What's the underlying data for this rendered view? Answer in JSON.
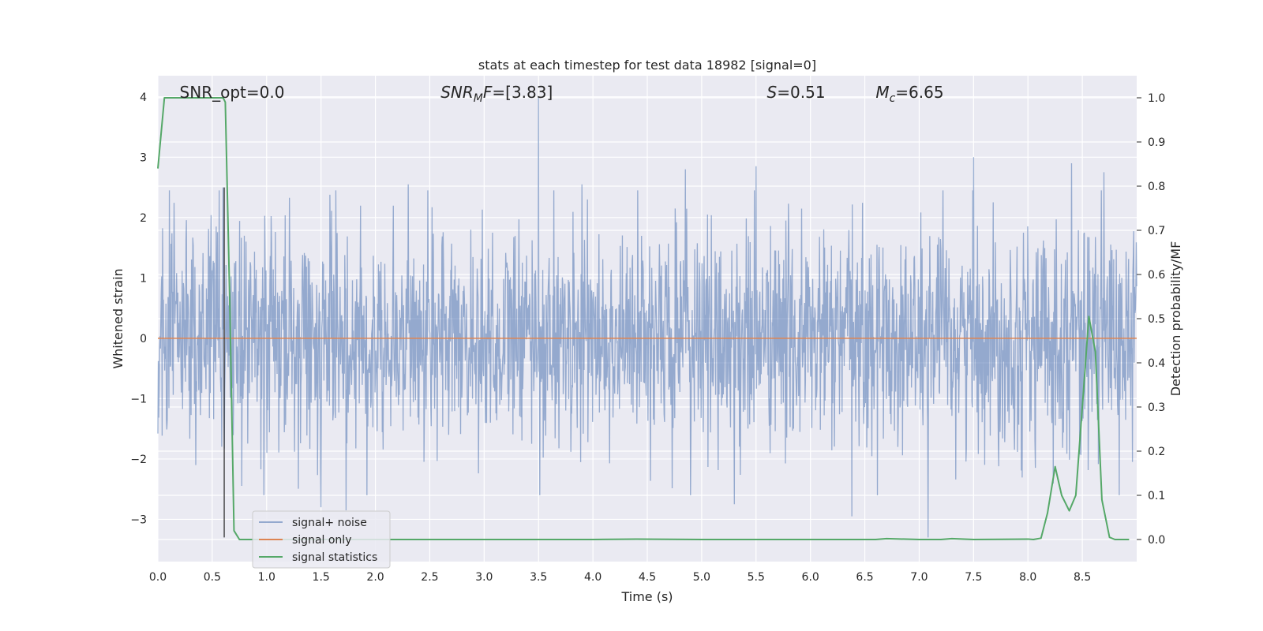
{
  "chart_data": {
    "type": "line",
    "title": "stats at each timestep for test data 18982 [signal=0]",
    "xlabel": "Time (s)",
    "ylabel_left": "Whitened strain",
    "ylabel_right": "Detection probability/MF",
    "xlim": [
      0.0,
      9.0
    ],
    "ylim_left": [
      -3.7,
      4.35
    ],
    "ylim_right": [
      -0.05,
      1.05
    ],
    "xticks": [
      "0.0",
      "0.5",
      "1.0",
      "1.5",
      "2.0",
      "2.5",
      "3.0",
      "3.5",
      "4.0",
      "4.5",
      "5.0",
      "5.5",
      "6.0",
      "6.5",
      "7.0",
      "7.5",
      "8.0",
      "8.5"
    ],
    "xtick_values": [
      0.0,
      0.5,
      1.0,
      1.5,
      2.0,
      2.5,
      3.0,
      3.5,
      4.0,
      4.5,
      5.0,
      5.5,
      6.0,
      6.5,
      7.0,
      7.5,
      8.0,
      8.5
    ],
    "yticks_left": [
      "−3",
      "−2",
      "−1",
      "0",
      "1",
      "2",
      "3",
      "4"
    ],
    "ytick_values_left": [
      -3,
      -2,
      -1,
      0,
      1,
      2,
      3,
      4
    ],
    "yticks_right": [
      "0.0",
      "0.1",
      "0.2",
      "0.3",
      "0.4",
      "0.5",
      "0.6",
      "0.7",
      "0.8",
      "0.9",
      "1.0"
    ],
    "ytick_values_right": [
      0.0,
      0.1,
      0.2,
      0.3,
      0.4,
      0.5,
      0.6,
      0.7,
      0.8,
      0.9,
      1.0
    ],
    "grid": true,
    "legend_placement": "lower-left",
    "annotations": [
      {
        "text": "SNR_opt=0.0",
        "x": 0.2
      },
      {
        "text": "SNR_MF=[3.83]",
        "x": 2.6,
        "math": "SNR_MF"
      },
      {
        "text": "S=0.51",
        "x": 5.6,
        "math": "S"
      },
      {
        "text": "M_c=6.65",
        "x": 6.6,
        "math": "Mc"
      }
    ],
    "vline": {
      "x": 0.61,
      "y_from": -3.3,
      "y_to": 2.5
    },
    "series": [
      {
        "name": "signal+ noise",
        "color": "#4c72b0",
        "axis": "left",
        "style": "noise",
        "typical_std": 0.9,
        "extreme_peaks": [
          {
            "x": 0.6,
            "y": 2.5
          },
          {
            "x": 0.35,
            "y": -2.1
          },
          {
            "x": 1.5,
            "y": -2.8
          },
          {
            "x": 1.73,
            "y": -2.85
          },
          {
            "x": 2.3,
            "y": 2.55
          },
          {
            "x": 3.5,
            "y": 4.0
          },
          {
            "x": 3.9,
            "y": 2.55
          },
          {
            "x": 4.85,
            "y": 2.8
          },
          {
            "x": 5.3,
            "y": -2.75
          },
          {
            "x": 5.5,
            "y": 2.85
          },
          {
            "x": 6.38,
            "y": -2.95
          },
          {
            "x": 7.08,
            "y": -3.3
          },
          {
            "x": 7.5,
            "y": 3.0
          },
          {
            "x": 8.4,
            "y": 2.9
          },
          {
            "x": 8.7,
            "y": 2.75
          }
        ]
      },
      {
        "name": "signal only",
        "color": "#dd8452",
        "axis": "left",
        "x": [
          0.0,
          9.0
        ],
        "y": [
          0.0,
          0.0
        ]
      },
      {
        "name": "signal statistics",
        "color": "#55a868",
        "axis": "right",
        "x": [
          0.0,
          0.06,
          0.12,
          0.18,
          0.24,
          0.3,
          0.36,
          0.42,
          0.48,
          0.54,
          0.6,
          0.62,
          0.66,
          0.7,
          0.75,
          0.8,
          1.0,
          2.0,
          3.0,
          4.0,
          4.4,
          5.0,
          6.0,
          6.6,
          6.7,
          7.0,
          7.2,
          7.3,
          7.5,
          8.0,
          8.05,
          8.12,
          8.18,
          8.25,
          8.31,
          8.38,
          8.44,
          8.5,
          8.56,
          8.62,
          8.68,
          8.75,
          8.8,
          8.87,
          8.93
        ],
        "y": [
          0.84,
          1.0,
          1.0,
          1.0,
          1.0,
          1.0,
          1.0,
          1.0,
          1.0,
          1.0,
          1.0,
          0.99,
          0.55,
          0.02,
          0.0,
          0.0,
          0.0,
          0.0,
          0.0,
          0.0,
          0.001,
          0.0,
          0.0,
          0.0,
          0.002,
          0.0,
          0.0,
          0.002,
          0.0,
          0.001,
          0.0,
          0.003,
          0.06,
          0.165,
          0.1,
          0.065,
          0.1,
          0.3,
          0.505,
          0.425,
          0.09,
          0.005,
          0.0,
          0.0,
          0.0
        ]
      }
    ]
  }
}
